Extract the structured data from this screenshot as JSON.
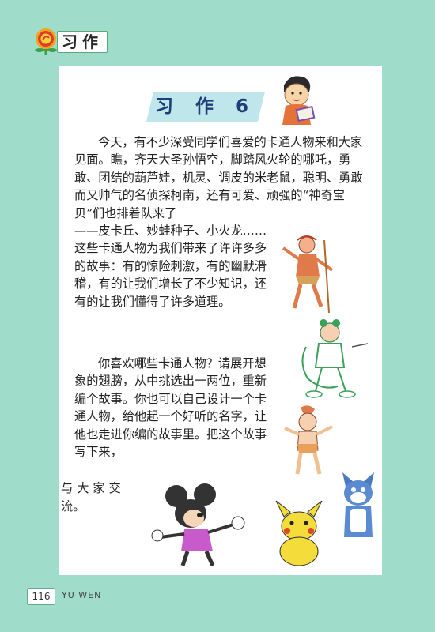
{
  "header": {
    "section_label": "习作"
  },
  "title": "习 作 6",
  "paragraph1_top": "今天，有不少深受同学们喜爱的卡通人物来和大家见面。瞧，齐天大圣孙悟空，脚踏风火轮的哪吒，勇敢、团结的葫芦娃，机灵、调皮的米老鼠，聪明、勇敢而又帅气的名侦探柯南，还有可爱、顽强的“神奇宝贝”们也排着队来了",
  "paragraph1_bottom": "——皮卡丘、妙蛙种子、小火龙……这些卡通人物为我们带来了许许多多的故事：有的惊险刺激，有的幽默滑稽，有的让我们增长了不少知识，还有的让我们懂得了许多道理。",
  "paragraph2": "你喜欢哪些卡通人物？请展开想象的翅膀，从中挑选出一两位，重新编个故事。你也可以自己设计一个卡通人物，给他起一个好听的名字，让他也走进你编的故事里。把这个故事写下来，",
  "paragraph2_tail1": "与大家交",
  "paragraph2_tail2": "流。",
  "footer": {
    "page_number": "116",
    "book_label": "YU WEN"
  },
  "colors": {
    "background": "#9fdcc9",
    "title_band": "#bfe6ea",
    "title_text": "#1d3f78"
  }
}
